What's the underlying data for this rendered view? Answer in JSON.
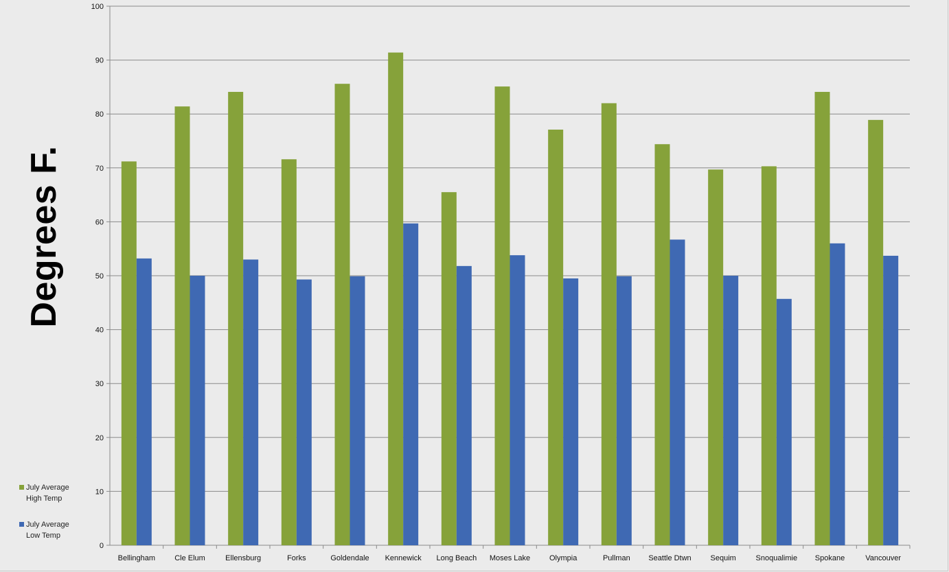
{
  "chart_data": {
    "type": "bar",
    "title": "",
    "ylabel": "Degrees F.",
    "xlabel": "",
    "ylim": [
      0,
      100
    ],
    "yticks": [
      0,
      10,
      20,
      30,
      40,
      50,
      60,
      70,
      80,
      90,
      100
    ],
    "grid": true,
    "legend_placement": "left-bottom",
    "categories": [
      "Bellingham",
      "Cle Elum",
      "Ellensburg",
      "Forks",
      "Goldendale",
      "Kennewick",
      "Long Beach",
      "Moses Lake",
      "Olympia",
      "Pullman",
      "Seattle Dtwn",
      "Sequim",
      "Snoqualimie",
      "Spokane",
      "Vancouver"
    ],
    "series": [
      {
        "name": "July Average High Temp",
        "name_lines": [
          "July Average",
          "High Temp"
        ],
        "color": "#86a23a",
        "values": [
          71.2,
          81.4,
          84.1,
          71.6,
          85.6,
          91.4,
          65.5,
          85.1,
          77.1,
          82.0,
          74.4,
          69.7,
          70.3,
          84.1,
          78.9
        ]
      },
      {
        "name": "July Average Low Temp",
        "name_lines": [
          "July Average",
          "Low Temp"
        ],
        "color": "#3f69b3",
        "values": [
          53.2,
          50.0,
          53.0,
          49.3,
          49.9,
          59.7,
          51.8,
          53.8,
          49.5,
          49.9,
          56.7,
          50.0,
          45.7,
          56.0,
          53.7
        ]
      }
    ]
  }
}
